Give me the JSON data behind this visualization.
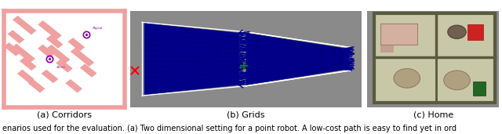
{
  "fig_width": 6.4,
  "fig_height": 1.71,
  "dpi": 100,
  "background_color": "#ffffff",
  "panels": [
    {
      "label": "(a) Corridors"
    },
    {
      "label": "(b) Grids"
    },
    {
      "label": "(c) Home"
    }
  ],
  "caption_text": "enarios used for the evaluation. (a) Two dimensional setting for a point robot. A low-cost path is easy to find yet in ord",
  "caption_fontsize": 7.0,
  "caption_color": "#000000",
  "corridors_bg": "#ffffff",
  "corridors_border": "#f0a0a0",
  "corridors_obstacle_color": "#f0a0a0",
  "grids_bg": "#8a8a8a",
  "home_bg": "#8a8a8a",
  "label_fontsize": 8.0,
  "label_color": "#000000"
}
